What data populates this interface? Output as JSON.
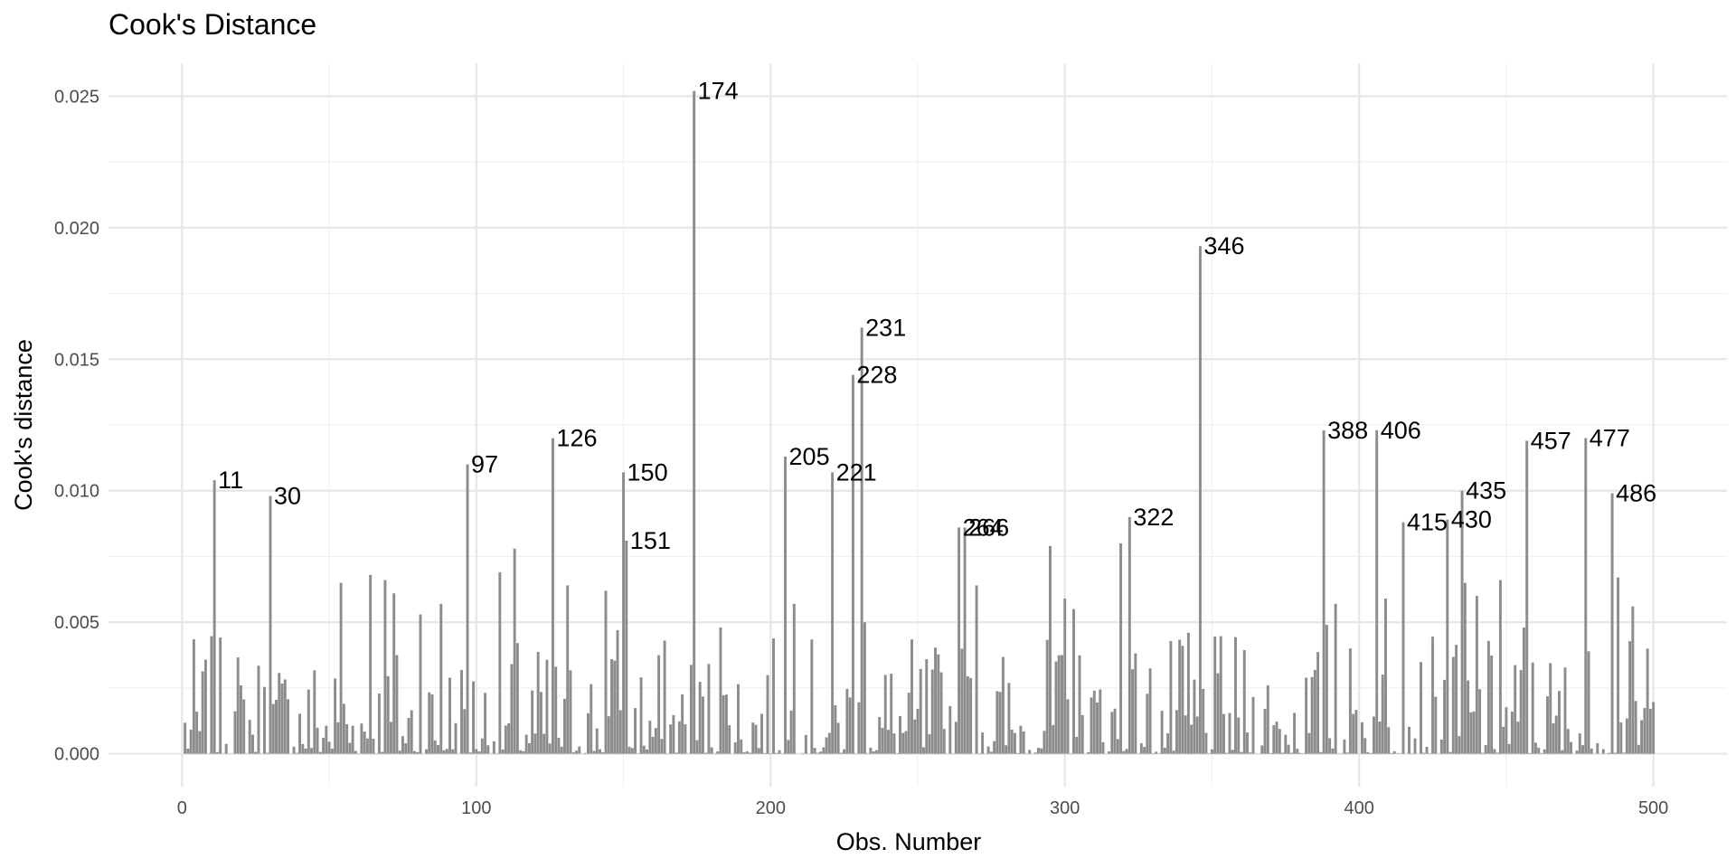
{
  "chart_data": {
    "type": "bar",
    "title": "Cook's Distance",
    "xlabel": "Obs. Number",
    "ylabel": "Cook's distance",
    "xlim": [
      -25,
      525
    ],
    "ylim": [
      -0.00125,
      0.02625
    ],
    "x_ticks": [
      0,
      100,
      200,
      300,
      400,
      500
    ],
    "x_tick_labels": [
      "0",
      "100",
      "200",
      "300",
      "400",
      "500"
    ],
    "y_ticks": [
      0,
      0.005,
      0.01,
      0.015,
      0.02,
      0.025
    ],
    "y_tick_labels": [
      "0.000",
      "0.005",
      "0.010",
      "0.015",
      "0.020",
      "0.025"
    ],
    "grid": true,
    "bar_color": "#8c8c8c",
    "n_obs": 500,
    "highlighted": [
      {
        "obs": 11,
        "value": 0.0104,
        "label": "11"
      },
      {
        "obs": 30,
        "value": 0.0098,
        "label": "30"
      },
      {
        "obs": 97,
        "value": 0.011,
        "label": "97"
      },
      {
        "obs": 126,
        "value": 0.012,
        "label": "126"
      },
      {
        "obs": 150,
        "value": 0.0107,
        "label": "150"
      },
      {
        "obs": 151,
        "value": 0.0081,
        "label": "151"
      },
      {
        "obs": 174,
        "value": 0.0252,
        "label": "174"
      },
      {
        "obs": 205,
        "value": 0.0113,
        "label": "205"
      },
      {
        "obs": 221,
        "value": 0.0107,
        "label": "221"
      },
      {
        "obs": 228,
        "value": 0.0144,
        "label": "228"
      },
      {
        "obs": 231,
        "value": 0.0162,
        "label": "231"
      },
      {
        "obs": 264,
        "value": 0.0086,
        "label": "264"
      },
      {
        "obs": 266,
        "value": 0.0086,
        "label": "266"
      },
      {
        "obs": 322,
        "value": 0.009,
        "label": "322"
      },
      {
        "obs": 346,
        "value": 0.0193,
        "label": "346"
      },
      {
        "obs": 388,
        "value": 0.0123,
        "label": "388"
      },
      {
        "obs": 406,
        "value": 0.0123,
        "label": "406"
      },
      {
        "obs": 415,
        "value": 0.0088,
        "label": "415"
      },
      {
        "obs": 430,
        "value": 0.0089,
        "label": "430"
      },
      {
        "obs": 435,
        "value": 0.01,
        "label": "435"
      },
      {
        "obs": 457,
        "value": 0.0119,
        "label": "457"
      },
      {
        "obs": 477,
        "value": 0.012,
        "label": "477"
      },
      {
        "obs": 486,
        "value": 0.0099,
        "label": "486"
      }
    ],
    "other_values": [
      {
        "obs": 54,
        "value": 0.0065
      },
      {
        "obs": 64,
        "value": 0.0068
      },
      {
        "obs": 69,
        "value": 0.0066
      },
      {
        "obs": 72,
        "value": 0.0061
      },
      {
        "obs": 81,
        "value": 0.0053
      },
      {
        "obs": 88,
        "value": 0.0057
      },
      {
        "obs": 108,
        "value": 0.0069
      },
      {
        "obs": 113,
        "value": 0.0078
      },
      {
        "obs": 131,
        "value": 0.0064
      },
      {
        "obs": 144,
        "value": 0.0062
      },
      {
        "obs": 148,
        "value": 0.0047
      },
      {
        "obs": 183,
        "value": 0.0048
      },
      {
        "obs": 208,
        "value": 0.0057
      },
      {
        "obs": 232,
        "value": 0.005
      },
      {
        "obs": 270,
        "value": 0.0064
      },
      {
        "obs": 295,
        "value": 0.0079
      },
      {
        "obs": 300,
        "value": 0.0059
      },
      {
        "obs": 303,
        "value": 0.0055
      },
      {
        "obs": 319,
        "value": 0.008
      },
      {
        "obs": 342,
        "value": 0.0046
      },
      {
        "obs": 389,
        "value": 0.0049
      },
      {
        "obs": 392,
        "value": 0.0057
      },
      {
        "obs": 409,
        "value": 0.0059
      },
      {
        "obs": 436,
        "value": 0.0065
      },
      {
        "obs": 440,
        "value": 0.006
      },
      {
        "obs": 448,
        "value": 0.0066
      },
      {
        "obs": 456,
        "value": 0.0048
      },
      {
        "obs": 488,
        "value": 0.0067
      },
      {
        "obs": 493,
        "value": 0.0056
      },
      {
        "obs": 498,
        "value": 0.004
      }
    ],
    "baseline_max": 0.0045,
    "baseline_seed": 7
  }
}
